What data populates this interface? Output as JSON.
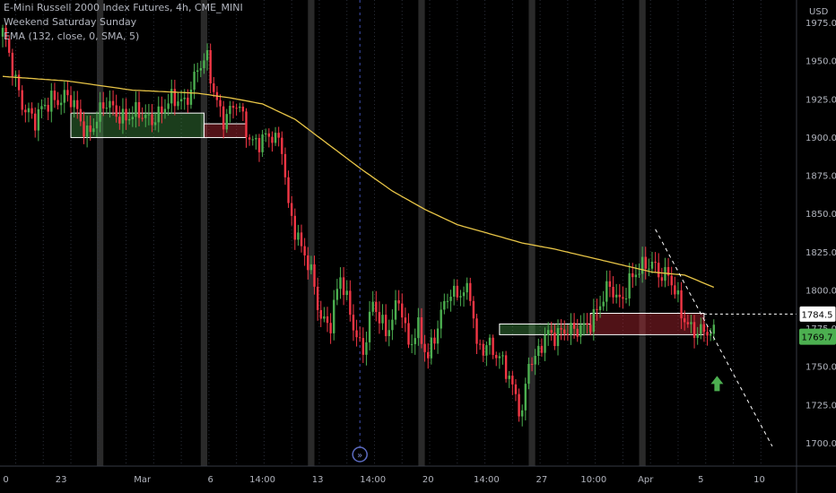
{
  "header": {
    "symbol_line": "E-Mini Russell 2000 Index Futures, 4h, CME_MINI",
    "indicator_1": "Weekend Saturday Sunday",
    "indicator_2": "EMA (132, close, 0, SMA, 5)"
  },
  "chart_data": {
    "type": "candlestick",
    "currency_label": "USD",
    "colors": {
      "background": "#000000",
      "up": "#26a69a",
      "up_candle": "#4caf50",
      "down": "#f23645",
      "ema": "#e8c547",
      "weekend_band": "#2a2a2a",
      "grid": "#2a2e39",
      "axis_text": "#b2b5be",
      "label_white": "#ffffff",
      "label_green": "#4caf50",
      "arrow": "#4caf50"
    },
    "y_axis": {
      "range": [
        1685,
        1990
      ],
      "ticks": [
        1700.0,
        1725.0,
        1750.0,
        1775.0,
        1800.0,
        1825.0,
        1850.0,
        1875.0,
        1900.0,
        1925.0,
        1950.0,
        1975.0
      ],
      "tick_labels": [
        "1700.0",
        "1725.0",
        "1750.0",
        "1775.0",
        "1800.0",
        "1825.0",
        "1850.0",
        "1875.0",
        "1900.0",
        "1925.0",
        "1950.0",
        "1975.0"
      ]
    },
    "x_axis": {
      "bar_count": 215,
      "ticks": [
        {
          "bar": 1,
          "label": "0"
        },
        {
          "bar": 18,
          "label": "23"
        },
        {
          "bar": 43,
          "label": "Mar"
        },
        {
          "bar": 64,
          "label": "6"
        },
        {
          "bar": 80,
          "label": "14:00"
        },
        {
          "bar": 97,
          "label": "13"
        },
        {
          "bar": 114,
          "label": "14:00"
        },
        {
          "bar": 131,
          "label": "20"
        },
        {
          "bar": 149,
          "label": "14:00"
        },
        {
          "bar": 166,
          "label": "27"
        },
        {
          "bar": 182,
          "label": "10:00"
        },
        {
          "bar": 198,
          "label": "Apr"
        },
        {
          "bar": 215,
          "label": "5"
        },
        {
          "bar": 233,
          "label": "10"
        }
      ]
    },
    "weekend_bands": [
      [
        29,
        31
      ],
      [
        61,
        63
      ],
      [
        94,
        96
      ],
      [
        128,
        130
      ],
      [
        162,
        164
      ],
      [
        196,
        198
      ]
    ],
    "session_marker_bar": 110,
    "session_marker_text": "»",
    "key_levels": [
      {
        "name": "broken-resistance",
        "value": 1784.5,
        "label": "1784.5"
      },
      {
        "name": "last-price",
        "value": 1769.7,
        "label": "1769.7"
      }
    ],
    "zones": [
      {
        "name": "support-zone-1",
        "type": "green",
        "from_bar": 21,
        "to_bar": 62,
        "low": 1900,
        "high": 1916
      },
      {
        "name": "flip-zone-1",
        "type": "red",
        "from_bar": 62,
        "to_bar": 75,
        "low": 1900,
        "high": 1909
      },
      {
        "name": "support-zone-2",
        "type": "green",
        "from_bar": 153,
        "to_bar": 181,
        "low": 1771,
        "high": 1778
      },
      {
        "name": "flip-zone-2",
        "type": "red",
        "from_bar": 181,
        "to_bar": 216,
        "low": 1771,
        "high": 1785
      }
    ],
    "trendline": {
      "from": {
        "bar": 201,
        "value": 1840
      },
      "to": {
        "bar": 237,
        "value": 1698
      }
    },
    "buy_arrow": {
      "bar": 220,
      "value": 1744
    },
    "ema_keypoints": [
      [
        0,
        1940
      ],
      [
        20,
        1937
      ],
      [
        40,
        1931
      ],
      [
        60,
        1929
      ],
      [
        70,
        1926
      ],
      [
        80,
        1922
      ],
      [
        90,
        1912
      ],
      [
        100,
        1896
      ],
      [
        110,
        1880
      ],
      [
        120,
        1865
      ],
      [
        130,
        1853
      ],
      [
        140,
        1843
      ],
      [
        150,
        1837
      ],
      [
        160,
        1831
      ],
      [
        170,
        1827
      ],
      [
        180,
        1822
      ],
      [
        190,
        1817
      ],
      [
        200,
        1812
      ],
      [
        210,
        1810
      ],
      [
        219,
        1802
      ]
    ],
    "price_keypoints": [
      [
        0,
        1966
      ],
      [
        6,
        1925
      ],
      [
        10,
        1908
      ],
      [
        15,
        1928
      ],
      [
        20,
        1925
      ],
      [
        26,
        1905
      ],
      [
        32,
        1920
      ],
      [
        38,
        1915
      ],
      [
        44,
        1912
      ],
      [
        50,
        1920
      ],
      [
        56,
        1925
      ],
      [
        60,
        1945
      ],
      [
        63,
        1948
      ],
      [
        65,
        1930
      ],
      [
        68,
        1915
      ],
      [
        72,
        1920
      ],
      [
        76,
        1900
      ],
      [
        80,
        1900
      ],
      [
        86,
        1895
      ],
      [
        88,
        1858
      ],
      [
        92,
        1825
      ],
      [
        95,
        1810
      ],
      [
        98,
        1785
      ],
      [
        101,
        1778
      ],
      [
        104,
        1806
      ],
      [
        108,
        1780
      ],
      [
        111,
        1760
      ],
      [
        114,
        1788
      ],
      [
        118,
        1775
      ],
      [
        122,
        1794
      ],
      [
        125,
        1760
      ],
      [
        128,
        1778
      ],
      [
        131,
        1758
      ],
      [
        134,
        1773
      ],
      [
        137,
        1797
      ],
      [
        140,
        1802
      ],
      [
        144,
        1796
      ],
      [
        146,
        1760
      ],
      [
        150,
        1768
      ],
      [
        154,
        1750
      ],
      [
        157,
        1735
      ],
      [
        160,
        1722
      ],
      [
        162,
        1756
      ],
      [
        164,
        1752
      ],
      [
        168,
        1772
      ],
      [
        172,
        1775
      ],
      [
        176,
        1770
      ],
      [
        180,
        1780
      ],
      [
        184,
        1790
      ],
      [
        187,
        1800
      ],
      [
        190,
        1795
      ],
      [
        193,
        1807
      ],
      [
        197,
        1812
      ],
      [
        200,
        1820
      ],
      [
        203,
        1812
      ],
      [
        205,
        1808
      ],
      [
        209,
        1785
      ],
      [
        212,
        1778
      ],
      [
        216,
        1770
      ],
      [
        219,
        1770
      ]
    ]
  }
}
